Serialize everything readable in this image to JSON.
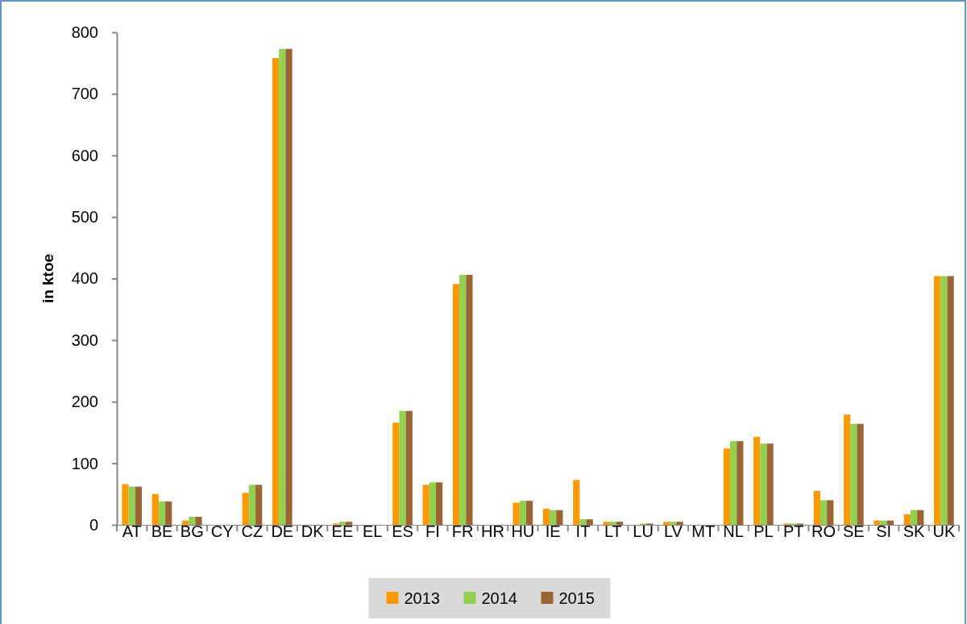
{
  "chart_data": {
    "type": "bar",
    "ylabel": "in ktoe",
    "categories": [
      "AT",
      "BE",
      "BG",
      "CY",
      "CZ",
      "DE",
      "DK",
      "EE",
      "EL",
      "ES",
      "FI",
      "FR",
      "HR",
      "HU",
      "IE",
      "IT",
      "LT",
      "LU",
      "LV",
      "MT",
      "NL",
      "PL",
      "PT",
      "RO",
      "SE",
      "SI",
      "SK",
      "UK"
    ],
    "series": [
      {
        "name": "2013",
        "color": "#ff9900",
        "values": [
          66,
          50,
          7,
          0,
          52,
          758,
          0,
          2,
          0,
          166,
          65,
          391,
          0,
          36,
          26,
          73,
          5,
          null,
          5,
          0,
          124,
          143,
          2,
          55,
          179,
          7,
          17,
          404
        ]
      },
      {
        "name": "2014",
        "color": "#92d050",
        "values": [
          62,
          38,
          13,
          0,
          65,
          773,
          0,
          5,
          0,
          185,
          69,
          406,
          0,
          39,
          24,
          9,
          5,
          2,
          5,
          0,
          136,
          132,
          2,
          40,
          164,
          7,
          24,
          404
        ]
      },
      {
        "name": "2015",
        "color": "#996633",
        "values": [
          62,
          38,
          13,
          0,
          65,
          773,
          0,
          5,
          0,
          185,
          69,
          406,
          0,
          39,
          24,
          9,
          5,
          2,
          5,
          0,
          136,
          132,
          2,
          40,
          164,
          7,
          24,
          404
        ]
      }
    ],
    "ylim": [
      0,
      800
    ],
    "yticks": [
      0,
      100,
      200,
      300,
      400,
      500,
      600,
      700,
      800
    ],
    "grid": false,
    "legend": "bottom"
  }
}
